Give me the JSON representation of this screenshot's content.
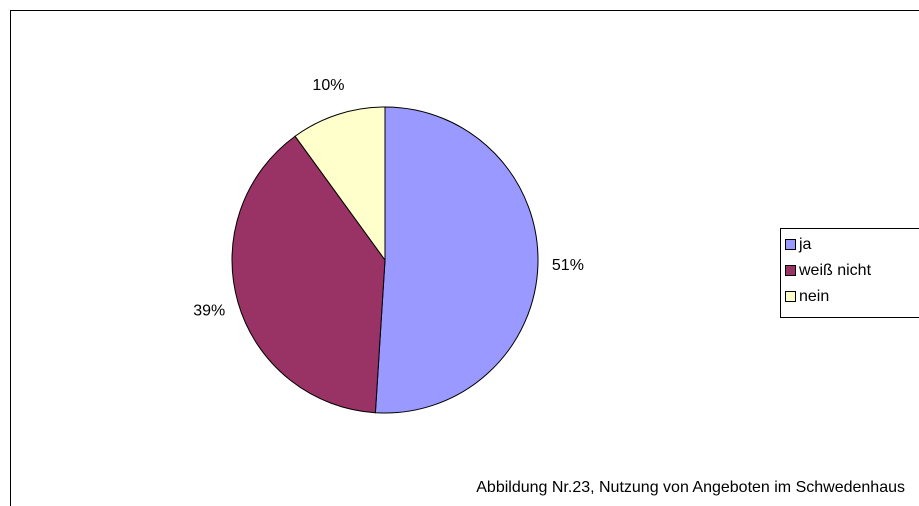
{
  "chart_data": {
    "type": "pie",
    "caption": "Abbildung Nr.23, Nutzung von Angeboten im Schwedenhaus",
    "categories": [
      "ja",
      "weiß nicht",
      "nein"
    ],
    "values": [
      51,
      39,
      10
    ],
    "value_labels": [
      "51%",
      "39%",
      "10%"
    ],
    "colors": [
      "#9999ff",
      "#993366",
      "#ffffcc"
    ],
    "legend": "right"
  }
}
